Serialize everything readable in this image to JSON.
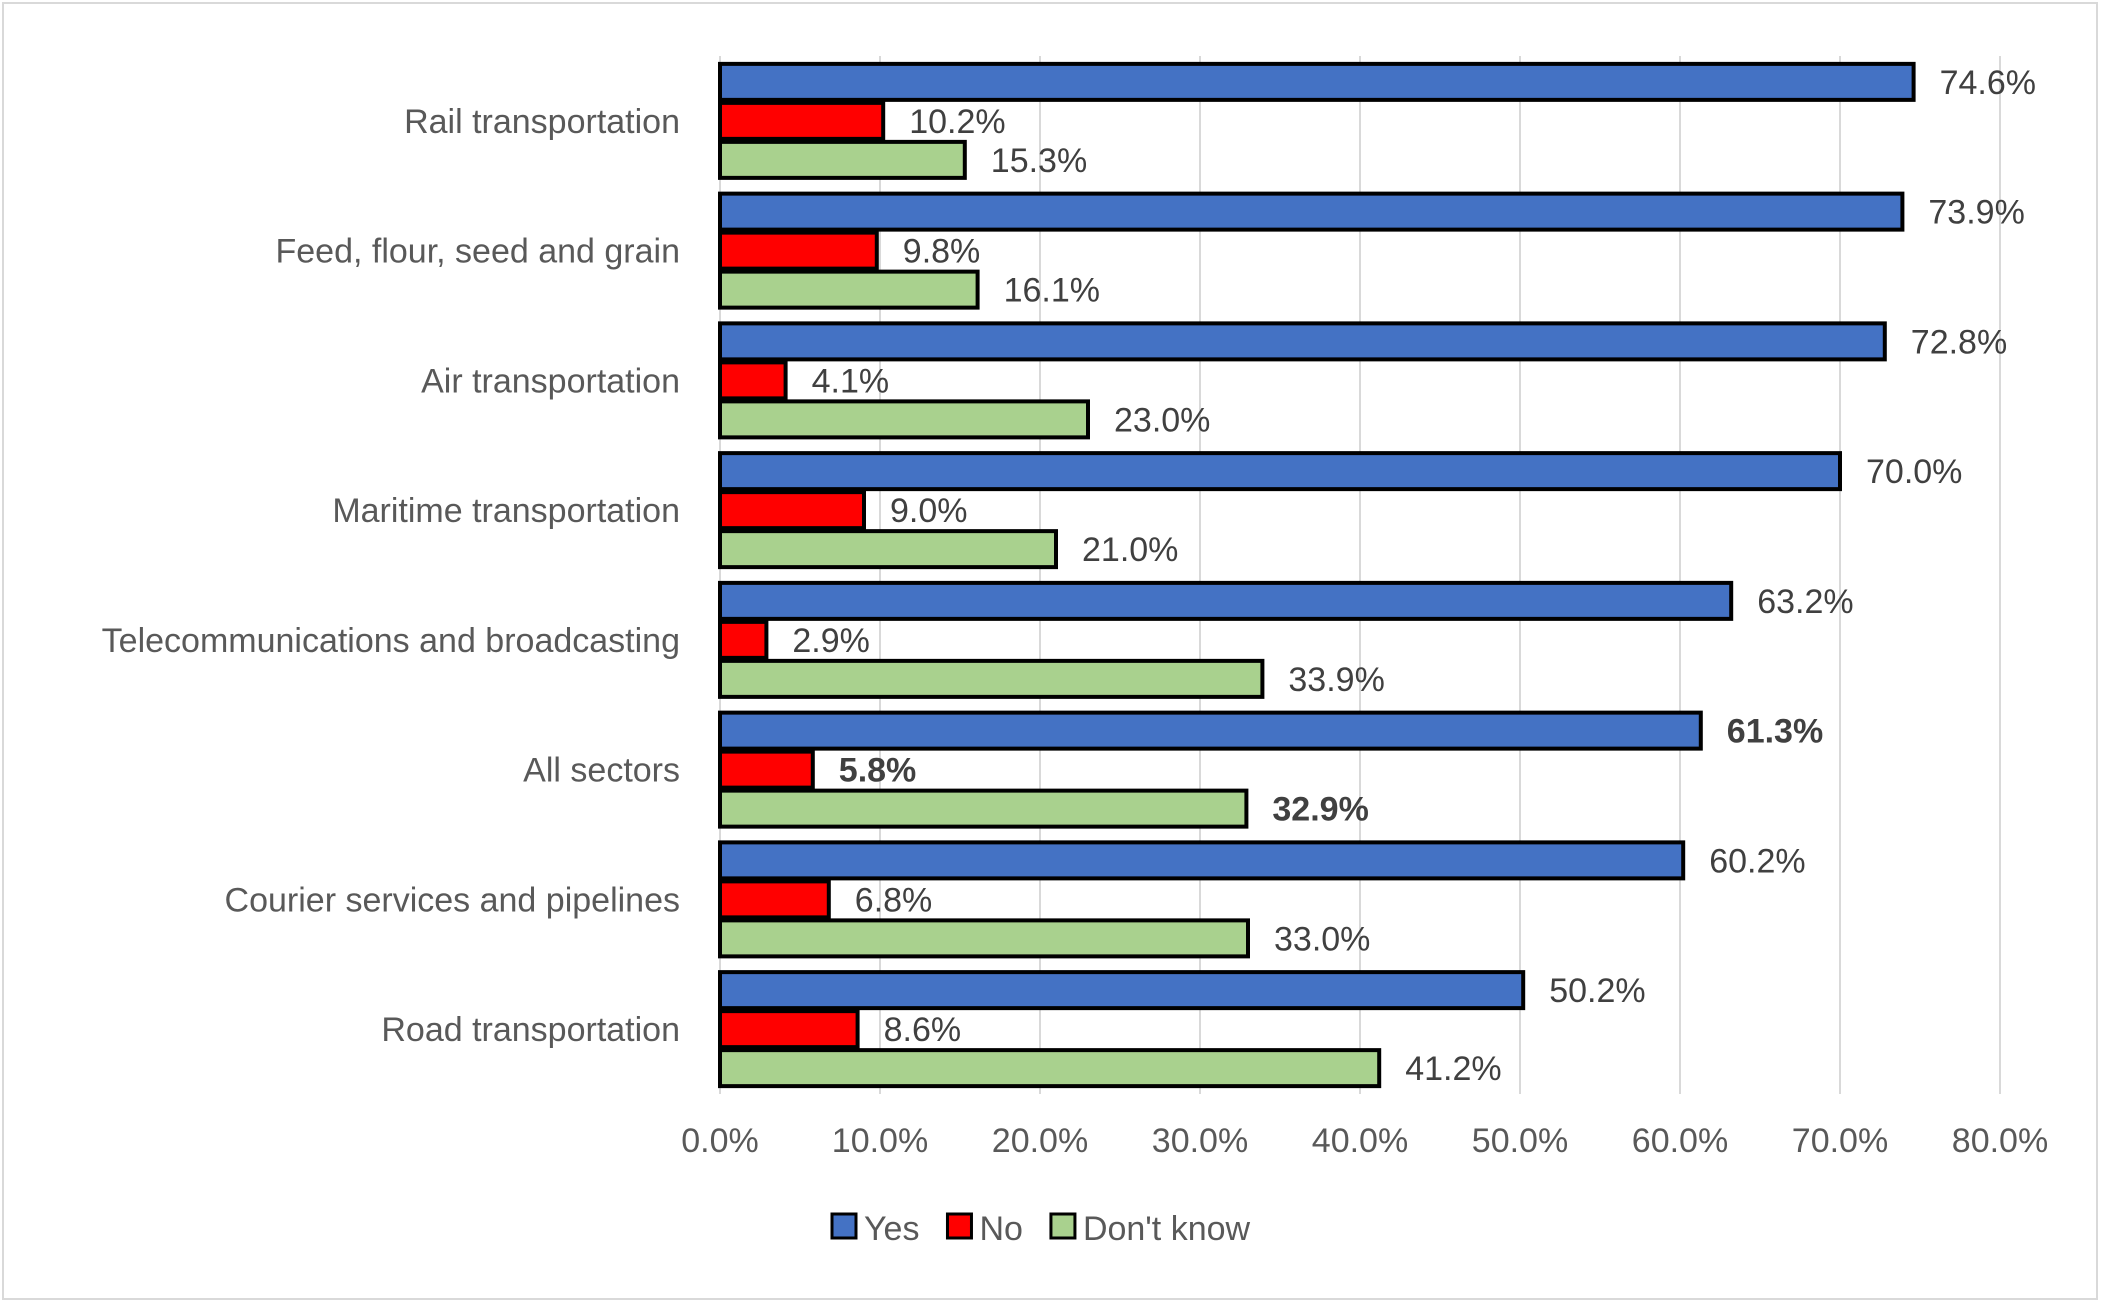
{
  "chart_data": {
    "type": "bar",
    "orientation": "horizontal",
    "title": "",
    "xlabel": "",
    "ylabel": "",
    "xlim": [
      0,
      80
    ],
    "x_ticks": [
      "0.0%",
      "10.0%",
      "20.0%",
      "30.0%",
      "40.0%",
      "50.0%",
      "60.0%",
      "70.0%",
      "80.0%"
    ],
    "categories": [
      "Rail transportation",
      "Feed, flour, seed and grain",
      "Air transportation",
      "Maritime transportation",
      "Telecommunications and broadcasting",
      "All sectors",
      "Courier services and pipelines",
      "Road transportation"
    ],
    "bold_category": "All sectors",
    "series": [
      {
        "name": "Yes",
        "color": "#4472c4",
        "values": [
          74.6,
          73.9,
          72.8,
          70.0,
          63.2,
          61.3,
          60.2,
          50.2
        ],
        "labels": [
          "74.6%",
          "73.9%",
          "72.8%",
          "70.0%",
          "63.2%",
          "61.3%",
          "60.2%",
          "50.2%"
        ]
      },
      {
        "name": "No",
        "color": "#ff0000",
        "values": [
          10.2,
          9.8,
          4.1,
          9.0,
          2.9,
          5.8,
          6.8,
          8.6
        ],
        "labels": [
          "10.2%",
          "9.8%",
          "4.1%",
          "9.0%",
          "2.9%",
          "5.8%",
          "6.8%",
          "8.6%"
        ]
      },
      {
        "name": "Don't know",
        "color": "#a9d18e",
        "values": [
          15.3,
          16.1,
          23.0,
          21.0,
          33.9,
          32.9,
          33.0,
          41.2
        ],
        "labels": [
          "15.3%",
          "16.1%",
          "23.0%",
          "21.0%",
          "33.9%",
          "32.9%",
          "33.0%",
          "41.2%"
        ]
      }
    ],
    "grid": true,
    "legend_position": "bottom"
  }
}
